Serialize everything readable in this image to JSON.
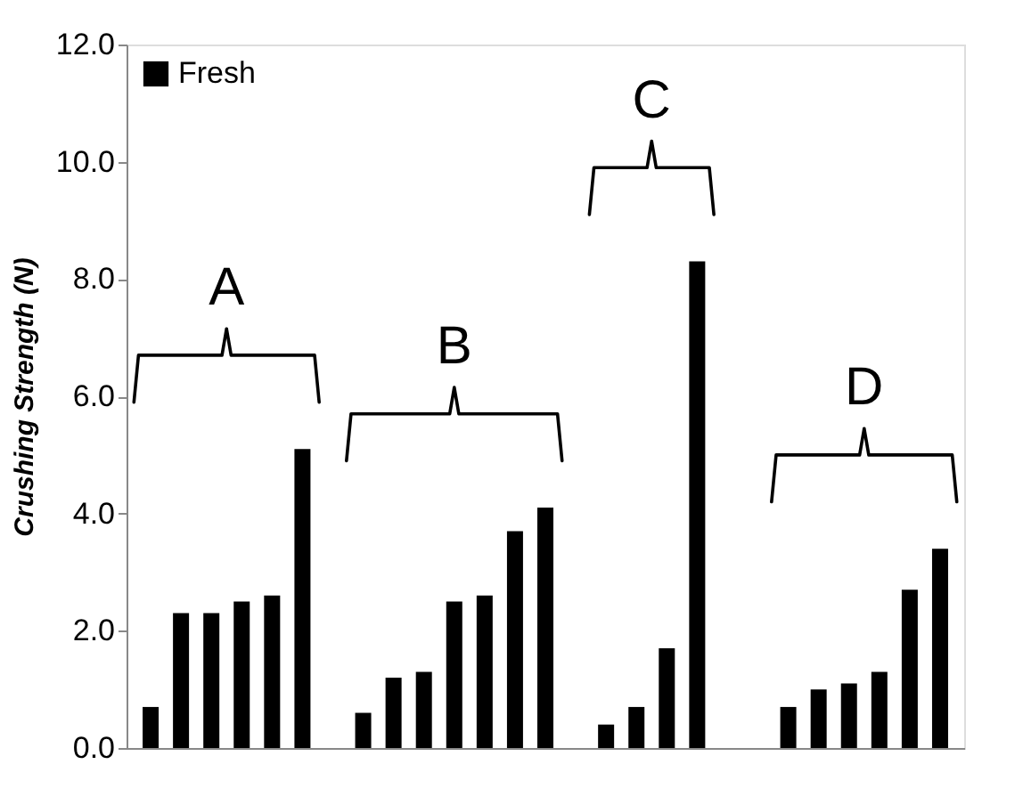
{
  "chart_data": {
    "type": "bar",
    "ylabel": "Crushing Strength (N)",
    "categories": [
      null,
      null,
      null,
      null,
      null,
      null,
      null,
      null,
      null,
      null,
      null,
      null,
      null,
      null,
      null,
      null,
      null,
      null,
      null,
      null,
      null,
      null,
      null,
      null,
      null,
      null,
      null
    ],
    "series": [
      {
        "name": "Fresh",
        "color": "#000000",
        "values": [
          0.7,
          2.3,
          2.3,
          2.5,
          2.6,
          5.1,
          null,
          0.6,
          1.2,
          1.3,
          2.5,
          2.6,
          3.7,
          4.1,
          null,
          0.4,
          0.7,
          1.7,
          8.3,
          null,
          null,
          0.7,
          1.0,
          1.1,
          1.3,
          2.7,
          3.4
        ]
      }
    ],
    "ylim": [
      0,
      12
    ],
    "yticks": [
      {
        "value": 0,
        "label": "0.0"
      },
      {
        "value": 2,
        "label": "2.0"
      },
      {
        "value": 4,
        "label": "4.0"
      },
      {
        "value": 6,
        "label": "6.0"
      },
      {
        "value": 8,
        "label": "8.0"
      },
      {
        "value": 10,
        "label": "10.0"
      },
      {
        "value": 12,
        "label": "12.0"
      }
    ],
    "annotations": [
      "A",
      "B",
      "C",
      "D"
    ],
    "legend": "top left",
    "grid": false,
    "tick_labels": "y"
  }
}
